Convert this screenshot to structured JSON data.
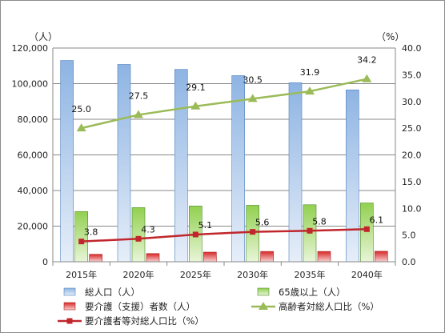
{
  "chart_data": {
    "type": "bar",
    "categories": [
      "2015年",
      "2020年",
      "2025年",
      "2030年",
      "2035年",
      "2040年"
    ],
    "y_left": {
      "unit": "（人）",
      "min": 0,
      "max": 120000,
      "step": 20000,
      "ticks": [
        "0",
        "20,000",
        "40,000",
        "60,000",
        "80,000",
        "100,000",
        "120,000"
      ]
    },
    "y_right": {
      "unit": "（%）",
      "min": 0,
      "max": 40,
      "step": 5,
      "ticks": [
        "0.0",
        "5.0",
        "10.0",
        "15.0",
        "20.0",
        "25.0",
        "30.0",
        "35.0",
        "40.0"
      ]
    },
    "series": [
      {
        "name": "総人口（人）",
        "kind": "bar",
        "axis": "left",
        "color": "#8eb4e3",
        "values": [
          113000,
          110800,
          108000,
          104500,
          100500,
          96500
        ]
      },
      {
        "name": "65歳以上（人）",
        "kind": "bar",
        "axis": "left",
        "color": "#92d050",
        "values": [
          28200,
          30400,
          31300,
          31700,
          32000,
          33000
        ]
      },
      {
        "name": "要介護（支援）者数（人）",
        "kind": "bar",
        "axis": "left",
        "color": "#e03c3c",
        "values": [
          4200,
          4600,
          5400,
          5800,
          5800,
          5900
        ]
      },
      {
        "name": "高齢者対総人口比（%）",
        "kind": "line",
        "axis": "right",
        "color": "#9bbb59",
        "marker": "triangle",
        "values": [
          25.0,
          27.5,
          29.1,
          30.5,
          31.9,
          34.2
        ],
        "labels": [
          "25.0",
          "27.5",
          "29.1",
          "30.5",
          "31.9",
          "34.2"
        ]
      },
      {
        "name": "要介護者等対総人口比（%）",
        "kind": "line",
        "axis": "right",
        "color": "#c0262c",
        "marker": "square",
        "values": [
          3.8,
          4.3,
          5.1,
          5.6,
          5.8,
          6.1
        ],
        "labels": [
          "3.8",
          "4.3",
          "5.1",
          "5.6",
          "5.8",
          "6.1"
        ]
      }
    ],
    "grid": true,
    "legend_position": "bottom"
  }
}
